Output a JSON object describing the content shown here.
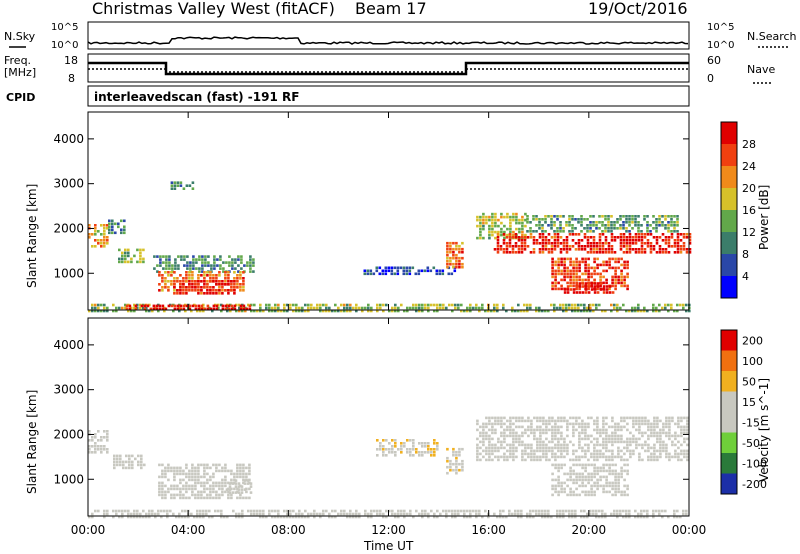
{
  "header": {
    "title": "Christmas Valley West (fitACF)",
    "beam": "Beam 17",
    "date": "19/Oct/2016"
  },
  "strips": {
    "nsky_label": "N.Sky",
    "nsky_ticks": [
      "10^5",
      "10^0"
    ],
    "nsearch_label": "N.Search",
    "nsearch_ticks": [
      "10^5",
      "10^0"
    ],
    "freq_label": "Freq.",
    "freq_unit": "[MHz]",
    "freq_ticks": [
      "18",
      "8"
    ],
    "nave_label": "Nave",
    "nave_ticks": [
      "60",
      "0"
    ],
    "cpid_label": "CPID",
    "cpid_value": "interleavedscan (fast) -191 RF"
  },
  "chart_data": [
    {
      "type": "heatmap",
      "title": "",
      "xlabel": "Time UT",
      "ylabel": "Slant Range [km]",
      "xlim": [
        0,
        24
      ],
      "ylim": [
        180,
        4600
      ],
      "x_ticks": [
        "00:00",
        "04:00",
        "08:00",
        "12:00",
        "16:00",
        "20:00",
        "00:00"
      ],
      "y_ticks": [
        "1000",
        "2000",
        "3000",
        "4000"
      ],
      "colorbar": {
        "label": "Power [dB]",
        "ticks": [
          "4",
          "8",
          "12",
          "16",
          "20",
          "24",
          "28"
        ],
        "range": [
          0,
          30
        ],
        "colors": [
          "#0000ff",
          "#2a47a8",
          "#3b7d6a",
          "#62a84a",
          "#d6c12a",
          "#f08a1a",
          "#f04010",
          "#e00000"
        ]
      },
      "echo_regions": [
        {
          "t": [
            0.0,
            0.8
          ],
          "r": [
            1600,
            2100
          ],
          "level": 18
        },
        {
          "t": [
            0.8,
            1.4
          ],
          "r": [
            1900,
            2200
          ],
          "level": 10
        },
        {
          "t": [
            1.2,
            2.2
          ],
          "r": [
            1250,
            1550
          ],
          "level": 14
        },
        {
          "t": [
            2.6,
            6.6
          ],
          "r": [
            1050,
            1400
          ],
          "level": 10
        },
        {
          "t": [
            2.8,
            6.2
          ],
          "r": [
            600,
            1050
          ],
          "level": 22
        },
        {
          "t": [
            3.4,
            5.8
          ],
          "r": [
            550,
            850
          ],
          "level": 27
        },
        {
          "t": [
            3.3,
            4.2
          ],
          "r": [
            2850,
            3050
          ],
          "level": 10
        },
        {
          "t": [
            0.0,
            24.0
          ],
          "r": [
            180,
            320
          ],
          "level": 14
        },
        {
          "t": [
            1.5,
            6.5
          ],
          "r": [
            200,
            300
          ],
          "level": 28
        },
        {
          "t": [
            11.0,
            14.6
          ],
          "r": [
            950,
            1150
          ],
          "level": 6
        },
        {
          "t": [
            14.3,
            14.9
          ],
          "r": [
            1150,
            1700
          ],
          "level": 22
        },
        {
          "t": [
            15.5,
            17.5
          ],
          "r": [
            1800,
            2350
          ],
          "level": 16
        },
        {
          "t": [
            16.2,
            24.0
          ],
          "r": [
            1450,
            1900
          ],
          "level": 27
        },
        {
          "t": [
            17.5,
            23.5
          ],
          "r": [
            1900,
            2300
          ],
          "level": 12
        },
        {
          "t": [
            18.5,
            21.5
          ],
          "r": [
            650,
            1350
          ],
          "level": 25
        },
        {
          "t": [
            19.0,
            21.0
          ],
          "r": [
            580,
            800
          ],
          "level": 28
        }
      ]
    },
    {
      "type": "heatmap",
      "title": "",
      "xlabel": "Time UT",
      "ylabel": "Slant Range [km]",
      "xlim": [
        0,
        24
      ],
      "ylim": [
        180,
        4600
      ],
      "x_ticks": [
        "00:00",
        "04:00",
        "08:00",
        "12:00",
        "16:00",
        "20:00",
        "00:00"
      ],
      "y_ticks": [
        "1000",
        "2000",
        "3000",
        "4000"
      ],
      "colorbar": {
        "label": "Velocity [m s^-1]",
        "ticks": [
          "200",
          "100",
          "50",
          "15",
          "-15",
          "-50",
          "-100",
          "-200"
        ],
        "range": [
          -250,
          250
        ],
        "colors": [
          "#1c2fa8",
          "#2a7a3a",
          "#6fcf3a",
          "#c8c8c0",
          "#c8c8c0",
          "#f0b020",
          "#f07010",
          "#e00000"
        ]
      },
      "echo_regions": [
        {
          "t": [
            0.0,
            0.8
          ],
          "r": [
            1600,
            2100
          ],
          "level": 0
        },
        {
          "t": [
            1.0,
            2.2
          ],
          "r": [
            1250,
            1550
          ],
          "level": 0
        },
        {
          "t": [
            2.8,
            6.4
          ],
          "r": [
            600,
            1350
          ],
          "level": 0
        },
        {
          "t": [
            5.5,
            6.5
          ],
          "r": [
            700,
            1000
          ],
          "level": -40
        },
        {
          "t": [
            0.0,
            24.0
          ],
          "r": [
            180,
            320
          ],
          "level": -40
        },
        {
          "t": [
            14.3,
            14.9
          ],
          "r": [
            1150,
            1700
          ],
          "level": 60
        },
        {
          "t": [
            11.5,
            14.0
          ],
          "r": [
            1500,
            1900
          ],
          "level": 60
        },
        {
          "t": [
            15.5,
            24.0
          ],
          "r": [
            1450,
            2400
          ],
          "level": 0
        },
        {
          "t": [
            18.5,
            21.5
          ],
          "r": [
            650,
            1350
          ],
          "level": 0
        }
      ]
    }
  ]
}
